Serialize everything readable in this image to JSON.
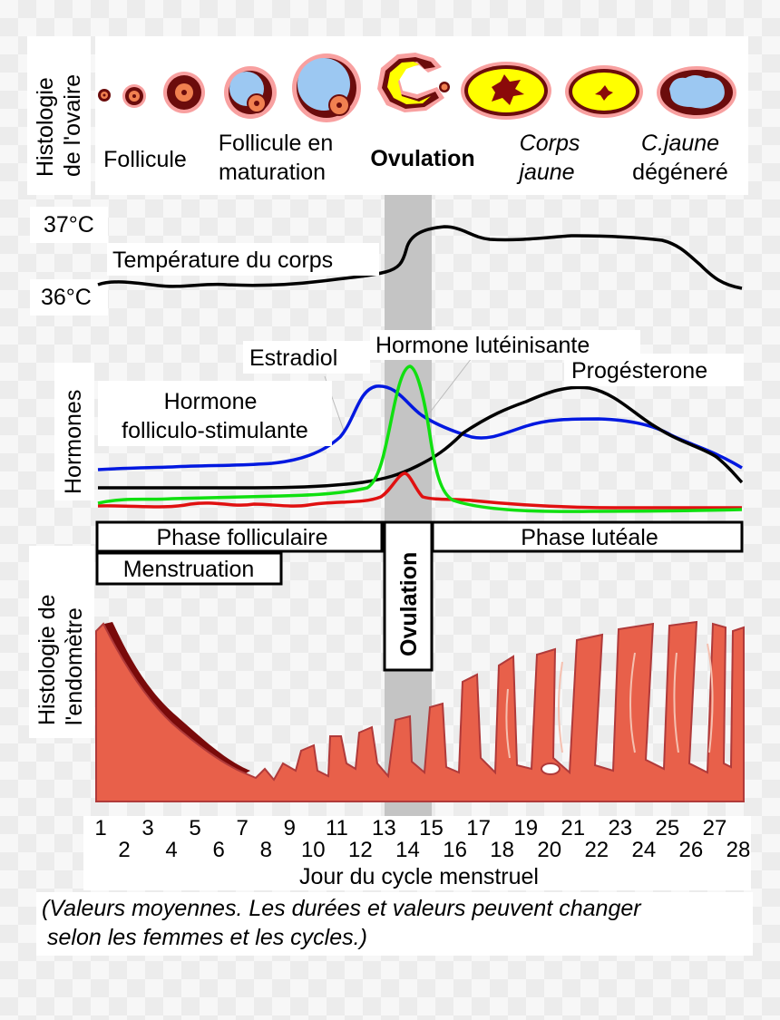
{
  "ovary": {
    "side_label_line1": "Histologie",
    "side_label_line2": "de l'ovaire",
    "stages": [
      {
        "line1": "Follicule",
        "line2": "",
        "style": "normal"
      },
      {
        "line1": "Follicule en",
        "line2": "maturation",
        "style": "normal"
      },
      {
        "line1": "Ovulation",
        "line2": "",
        "style": "bold"
      },
      {
        "line1": "Corps",
        "line2": "jaune",
        "style": "italic"
      },
      {
        "line1": "C.jaune",
        "line2": "dégéneré",
        "style": "mixed"
      }
    ]
  },
  "temperature": {
    "label": "Température du corps",
    "tick_high": "37°C",
    "tick_low": "36°C"
  },
  "hormones": {
    "side_label": "Hormones",
    "fsh_line1": "Hormone",
    "fsh_line2": "folliculo-stimulante",
    "estradiol": "Estradiol",
    "lh": "Hormone lutéinisante",
    "progesterone": "Progésterone",
    "colors": {
      "fsh": "#0018e0",
      "lh": "#10e010",
      "estradiol": "#e01010",
      "progesterone": "#000000"
    }
  },
  "phases": {
    "follicular": "Phase folliculaire",
    "luteal": "Phase lutéale",
    "menstruation": "Menstruation",
    "ovulation": "Ovulation"
  },
  "endometrium": {
    "side_label_line1": "Histologie de",
    "side_label_line2": "l'endomètre"
  },
  "axis": {
    "days_top": [
      "1",
      "3",
      "5",
      "7",
      "9",
      "11",
      "13",
      "15",
      "17",
      "19",
      "21",
      "23",
      "25",
      "27"
    ],
    "days_bottom": [
      "2",
      "4",
      "6",
      "8",
      "10",
      "12",
      "14",
      "16",
      "18",
      "20",
      "22",
      "24",
      "26",
      "28"
    ],
    "title": "Jour du cycle menstruel"
  },
  "note": {
    "line1": "(Valeurs moyennes. Les durées et valeurs peuvent changer",
    "line2": "selon les femmes et les cycles.)"
  }
}
